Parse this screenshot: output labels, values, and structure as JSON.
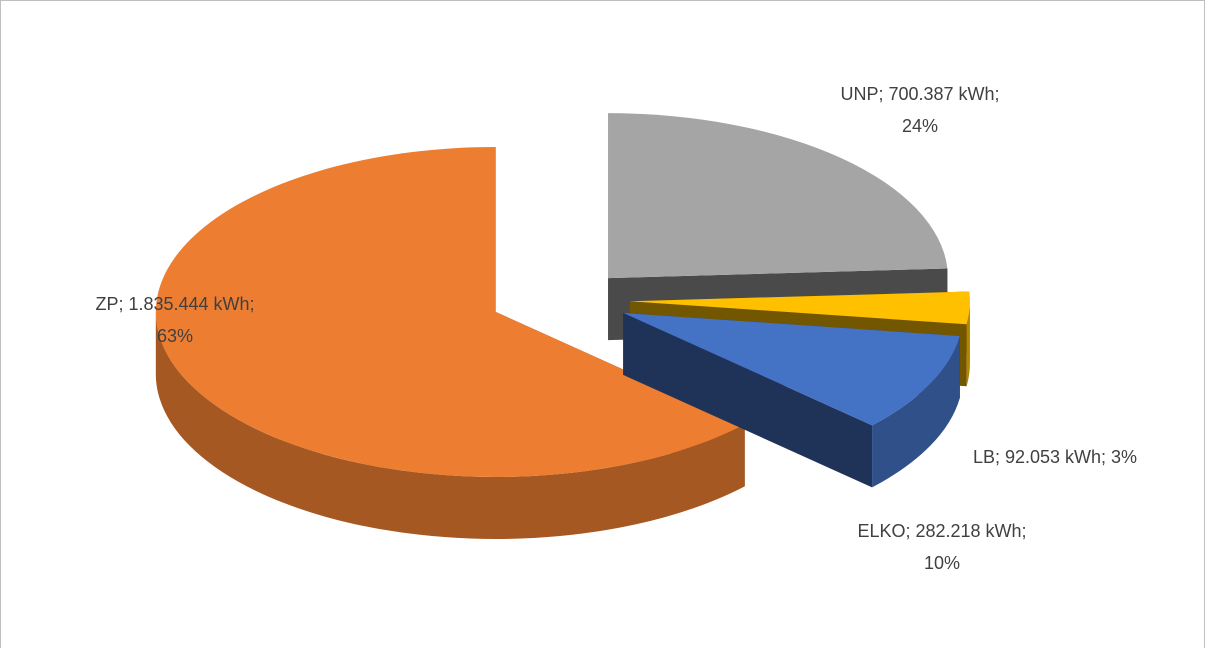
{
  "chart_data": {
    "type": "pie",
    "values": [
      700387,
      92053,
      282218,
      1835444
    ],
    "value_labels": [
      [
        "UNP; 700.387 kWh;",
        "24%"
      ],
      [
        "LB; 92.053 kWh; 3%"
      ],
      [
        "ELKO; 282.218 kWh;",
        "10%"
      ],
      [
        "ZP; 1.835.444 kWh;",
        "63%"
      ]
    ],
    "colors": [
      "#a5a5a5",
      "#ffc000",
      "#4472c4",
      "#ed7d31"
    ]
  }
}
